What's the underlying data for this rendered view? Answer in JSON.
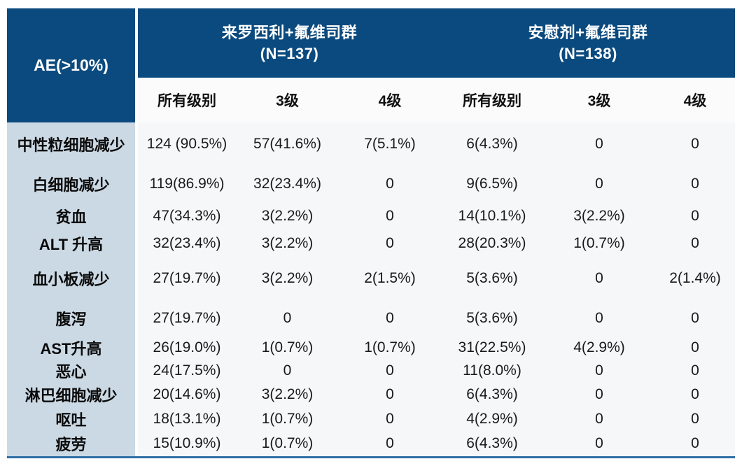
{
  "table": {
    "corner_label": "AE(>10%)",
    "groups": [
      {
        "title": "来罗西利+氟维司群",
        "n": "(N=137)"
      },
      {
        "title": "安慰剂+氟维司群",
        "n": "(N=138)"
      }
    ],
    "sub_headers": [
      "所有级别",
      "3级",
      "4级",
      "所有级别",
      "3级",
      "4级"
    ],
    "rows": [
      {
        "label": "中性粒细胞减少",
        "values": [
          "124 (90.5%)",
          "57(41.6%)",
          "7(5.1%)",
          "6(4.3%)",
          "0",
          "0"
        ]
      },
      {
        "label": "白细胞减少",
        "values": [
          "119(86.9%)",
          "32(23.4%)",
          "0",
          "9(6.5%)",
          "0",
          "0"
        ]
      },
      {
        "label": "贫血",
        "values": [
          "47(34.3%)",
          "3(2.2%)",
          "0",
          "14(10.1%)",
          "3(2.2%)",
          "0"
        ]
      },
      {
        "label": "ALT 升高",
        "values": [
          "32(23.4%)",
          "3(2.2%)",
          "0",
          "28(20.3%)",
          "1(0.7%)",
          "0"
        ]
      },
      {
        "label": "血小板减少",
        "values": [
          "27(19.7%)",
          "3(2.2%)",
          "2(1.5%)",
          "5(3.6%)",
          "0",
          "2(1.4%)"
        ]
      },
      {
        "label": "腹泻",
        "values": [
          "27(19.7%)",
          "0",
          "0",
          "5(3.6%)",
          "0",
          "0"
        ]
      },
      {
        "label": "AST升高",
        "values": [
          "26(19.0%)",
          "1(0.7%)",
          "1(0.7%)",
          "31(22.5%)",
          "4(2.9%)",
          "0"
        ]
      },
      {
        "label": "恶心",
        "values": [
          "24(17.5%)",
          "0",
          "0",
          "11(8.0%)",
          "0",
          "0"
        ]
      },
      {
        "label": "淋巴细胞减少",
        "values": [
          "20(14.6%)",
          "3(2.2%)",
          "0",
          "6(4.3%)",
          "0",
          "0"
        ]
      },
      {
        "label": "呕吐",
        "values": [
          "18(13.1%)",
          "1(0.7%)",
          "0",
          "4(2.9%)",
          "0",
          "0"
        ]
      },
      {
        "label": "疲劳",
        "values": [
          "15(10.9%)",
          "1(0.7%)",
          "0",
          "6(4.3%)",
          "0",
          "0"
        ]
      }
    ]
  },
  "colors": {
    "header_bg": "#0B4A7E",
    "header_text": "#FFFFFF",
    "row_label_bg": "#CBD9E4",
    "subheader_bg": "#FBFBFC",
    "data_bg": "#F6F7F8",
    "bottom_rule": "#2E6EA6",
    "body_text": "#1A1A1A"
  },
  "chart_data": {
    "type": "table",
    "title": "AE(>10%)",
    "row_header": "AE(>10%)",
    "column_groups": [
      {
        "label": "来罗西利+氟维司群 (N=137)",
        "columns": [
          "所有级别",
          "3级",
          "4级"
        ]
      },
      {
        "label": "安慰剂+氟维司群 (N=138)",
        "columns": [
          "所有级别",
          "3级",
          "4级"
        ]
      }
    ],
    "rows": [
      [
        "中性粒细胞减少",
        "124 (90.5%)",
        "57(41.6%)",
        "7(5.1%)",
        "6(4.3%)",
        "0",
        "0"
      ],
      [
        "白细胞减少",
        "119(86.9%)",
        "32(23.4%)",
        "0",
        "9(6.5%)",
        "0",
        "0"
      ],
      [
        "贫血",
        "47(34.3%)",
        "3(2.2%)",
        "0",
        "14(10.1%)",
        "3(2.2%)",
        "0"
      ],
      [
        "ALT 升高",
        "32(23.4%)",
        "3(2.2%)",
        "0",
        "28(20.3%)",
        "1(0.7%)",
        "0"
      ],
      [
        "血小板减少",
        "27(19.7%)",
        "3(2.2%)",
        "2(1.5%)",
        "5(3.6%)",
        "0",
        "2(1.4%)"
      ],
      [
        "腹泻",
        "27(19.7%)",
        "0",
        "0",
        "5(3.6%)",
        "0",
        "0"
      ],
      [
        "AST升高",
        "26(19.0%)",
        "1(0.7%)",
        "1(0.7%)",
        "31(22.5%)",
        "4(2.9%)",
        "0"
      ],
      [
        "恶心",
        "24(17.5%)",
        "0",
        "0",
        "11(8.0%)",
        "0",
        "0"
      ],
      [
        "淋巴细胞减少",
        "20(14.6%)",
        "3(2.2%)",
        "0",
        "6(4.3%)",
        "0",
        "0"
      ],
      [
        "呕吐",
        "18(13.1%)",
        "1(0.7%)",
        "0",
        "4(2.9%)",
        "0",
        "0"
      ],
      [
        "疲劳",
        "15(10.9%)",
        "1(0.7%)",
        "0",
        "6(4.3%)",
        "0",
        "0"
      ]
    ]
  }
}
